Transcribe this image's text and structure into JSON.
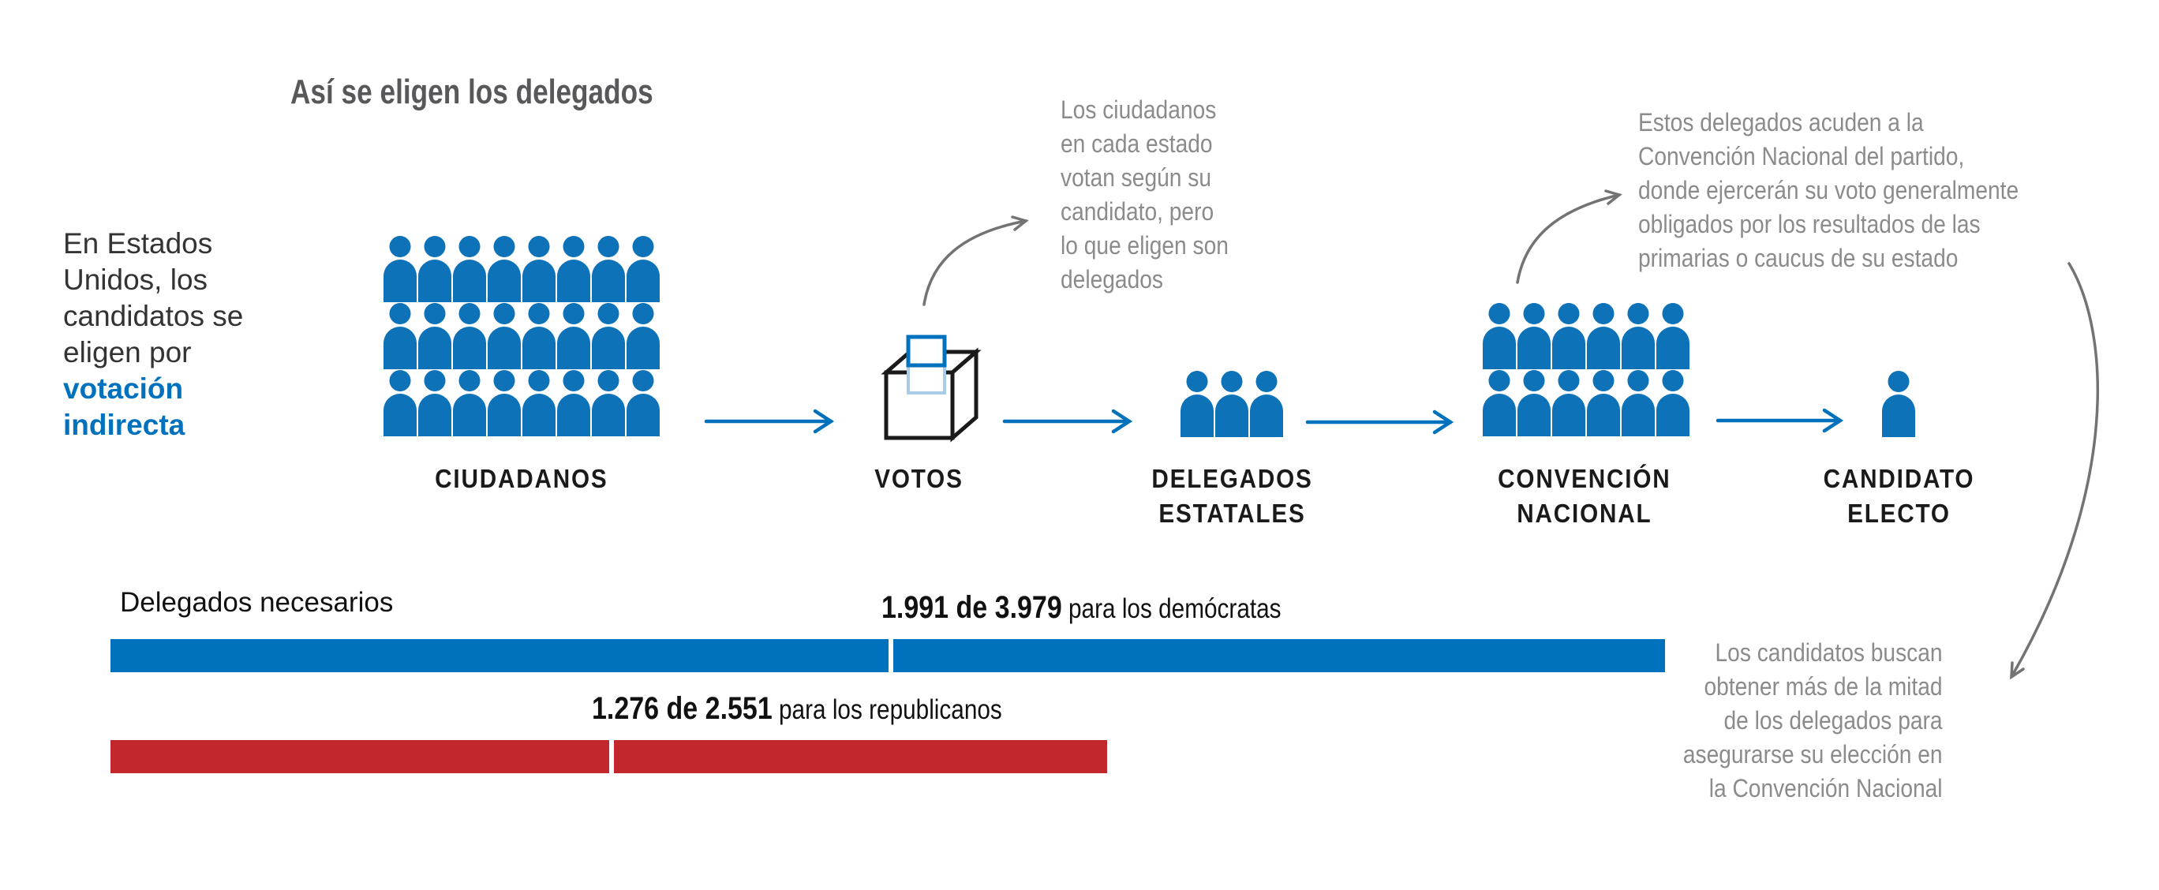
{
  "title": "Así se eligen los delegados",
  "intro": {
    "text_plain": "En Estados\nUnidos, los\ncandidatos se\neligen por\n",
    "text_highlight": "votación\nindirecta"
  },
  "stages": [
    {
      "id": "ciudadanos",
      "label": "CIUDADANOS",
      "icon": "person-icon",
      "rows": 3,
      "cols": 8
    },
    {
      "id": "votos",
      "label": "VOTOS",
      "icon": "ballot-box-icon",
      "rows": 0,
      "cols": 0
    },
    {
      "id": "delegados-estatales",
      "label": "DELEGADOS\nESTATALES",
      "icon": "person-icon",
      "rows": 1,
      "cols": 3
    },
    {
      "id": "convencion-nacional",
      "label": "CONVENCIÓN\nNACIONAL",
      "icon": "person-icon",
      "rows": 2,
      "cols": 6
    },
    {
      "id": "candidato-electo",
      "label": "CANDIDATO\nELECTO",
      "icon": "person-icon",
      "rows": 1,
      "cols": 1
    }
  ],
  "annotations": {
    "votes_note": "Los ciudadanos\nen cada estado\nvotan según su\ncandidato, pero\nlo que eligen son\ndelegados",
    "convention_note": "Estos delegados acuden a la\nConvención Nacional del partido,\ndonde ejercerán su voto generalmente\nobligados por los resultados de las\nprimarias o caucus de su estado",
    "majority_note": "Los candidatos buscan\nobtener más de la mitad\nde los delegados para\nasegurarse su elección en\nla Convención Nacional"
  },
  "bars": {
    "heading": "Delegados necesarios",
    "democrats": {
      "value_label": "1.991 de 3.979",
      "party_label": " para los demócratas",
      "needed": 1991,
      "total": 3979,
      "color": "#0071bc"
    },
    "republicans": {
      "value_label": "1.276 de 2.551",
      "party_label": " para los republicanos",
      "needed": 1276,
      "total": 2551,
      "color": "#c1272d"
    }
  },
  "colors": {
    "icon_blue": "#0e72b9",
    "bar_blue": "#0071bc",
    "bar_red": "#c1272d",
    "flow_arrow_blue": "#0071bc",
    "curved_arrow_gray": "#737373",
    "note_gray": "#8b8b8b",
    "title_gray": "#58585b",
    "text_dark": "#333333",
    "ballot_light_blue": "#a9cde9"
  }
}
